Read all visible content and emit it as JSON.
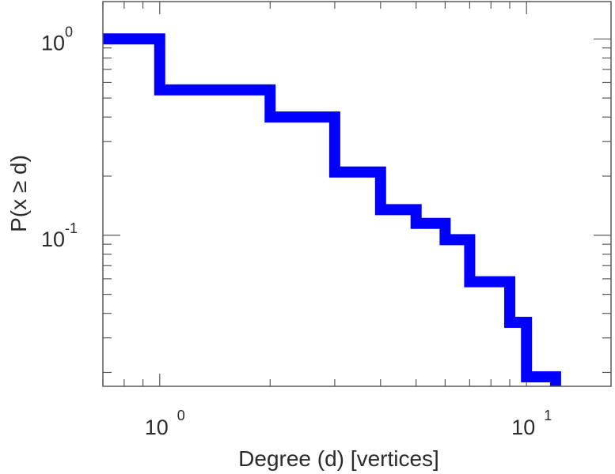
{
  "chart_data": {
    "type": "line",
    "title": "",
    "xlabel": "Degree (d) [vertices]",
    "ylabel": "P(x ≥ d)",
    "x_scale": "log",
    "y_scale": "log",
    "xlim": [
      0.7,
      17
    ],
    "ylim": [
      0.017,
      1.55
    ],
    "grid": false,
    "x_ticks": [
      {
        "base": "10",
        "exp": "0",
        "value": 1
      },
      {
        "base": "10",
        "exp": "1",
        "value": 10
      }
    ],
    "y_ticks": [
      {
        "base": "10",
        "exp": "0",
        "value": 1
      },
      {
        "base": "10",
        "exp": "-1",
        "value": 0.1
      }
    ],
    "series": [
      {
        "step": "post",
        "color": "#0000ff",
        "x": [
          0.7,
          1,
          2,
          3,
          4,
          5,
          6,
          7,
          9,
          10,
          12
        ],
        "y": [
          1.0,
          0.55,
          0.4,
          0.21,
          0.135,
          0.115,
          0.095,
          0.058,
          0.036,
          0.019,
          0.019
        ]
      }
    ]
  }
}
